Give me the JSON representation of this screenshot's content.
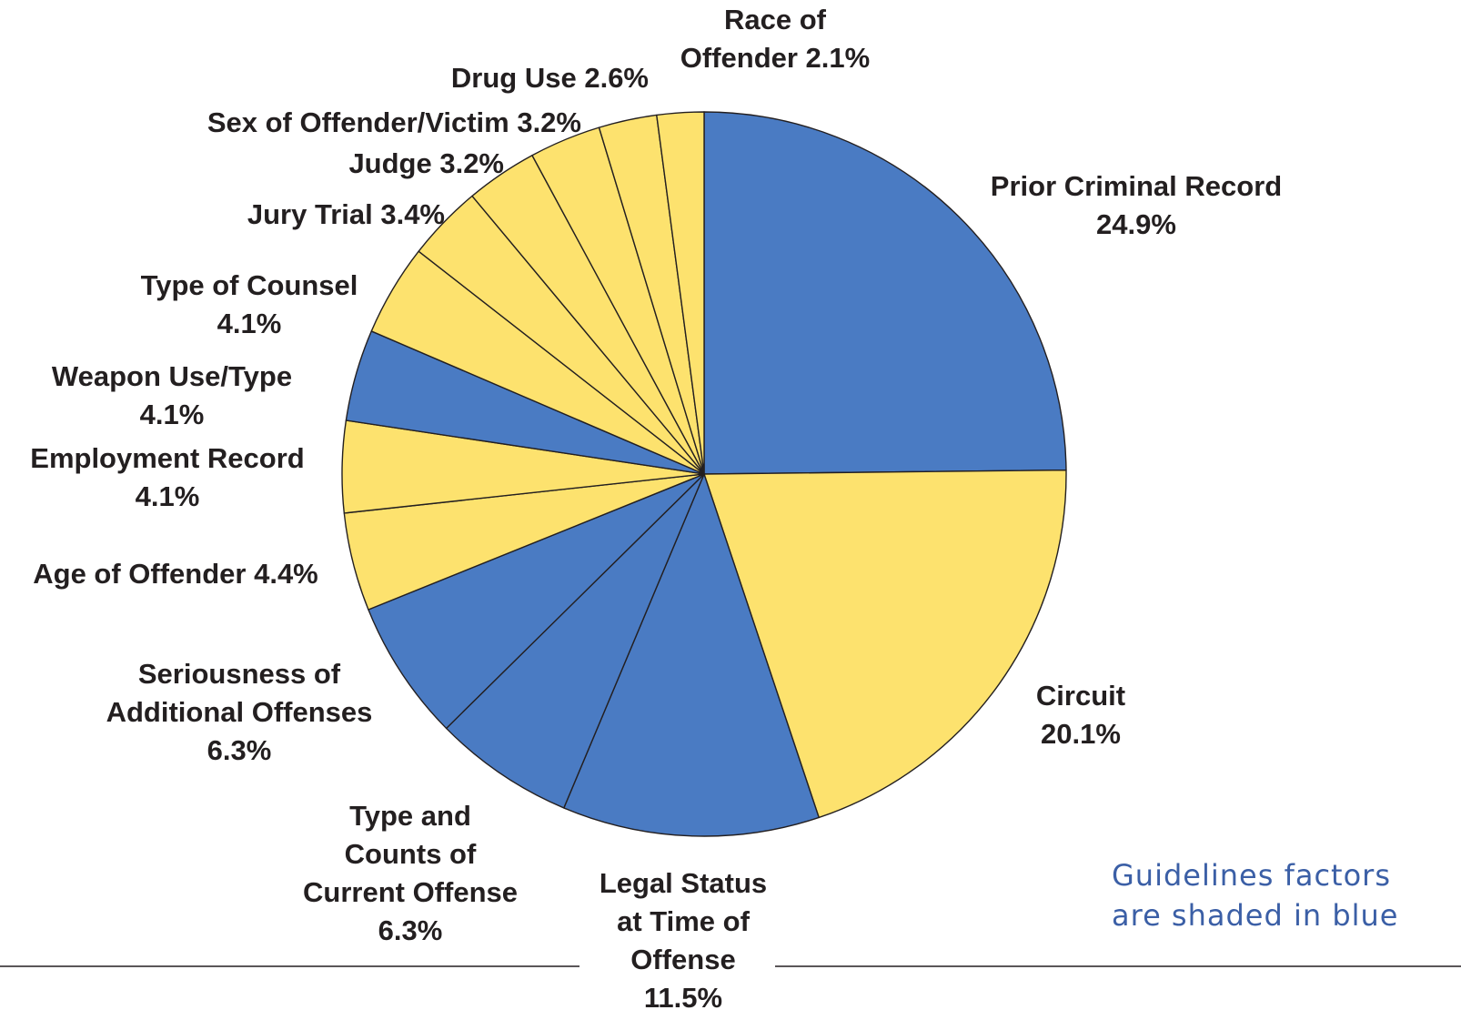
{
  "chart_data": {
    "type": "pie",
    "start_angle_deg": 0,
    "direction": "clockwise",
    "slices": [
      {
        "lines": [
          "Prior Criminal Record",
          "24.9%"
        ],
        "value": 24.9,
        "color": "#4a7bc3",
        "guidelines_factor": true
      },
      {
        "lines": [
          "Circuit",
          "20.1%"
        ],
        "value": 20.1,
        "color": "#fde26e",
        "guidelines_factor": false
      },
      {
        "lines": [
          "Legal Status",
          "at Time of",
          "Offense",
          "11.5%"
        ],
        "value": 11.5,
        "color": "#4a7bc3",
        "guidelines_factor": true
      },
      {
        "lines": [
          "Type and",
          "Counts of",
          "Current Offense",
          "6.3%"
        ],
        "value": 6.3,
        "color": "#4a7bc3",
        "guidelines_factor": true
      },
      {
        "lines": [
          "Seriousness of",
          "Additional Offenses",
          "6.3%"
        ],
        "value": 6.3,
        "color": "#4a7bc3",
        "guidelines_factor": true
      },
      {
        "lines": [
          "Age of Offender 4.4%"
        ],
        "value": 4.4,
        "color": "#fde26e",
        "guidelines_factor": false
      },
      {
        "lines": [
          "Employment Record",
          "4.1%"
        ],
        "value": 4.1,
        "color": "#fde26e",
        "guidelines_factor": false
      },
      {
        "lines": [
          "Weapon Use/Type",
          "4.1%"
        ],
        "value": 4.1,
        "color": "#4a7bc3",
        "guidelines_factor": true
      },
      {
        "lines": [
          "Type of Counsel",
          "4.1%"
        ],
        "value": 4.1,
        "color": "#fde26e",
        "guidelines_factor": false
      },
      {
        "lines": [
          "Jury Trial 3.4%"
        ],
        "value": 3.4,
        "color": "#fde26e",
        "guidelines_factor": false
      },
      {
        "lines": [
          "Judge 3.2%"
        ],
        "value": 3.2,
        "color": "#fde26e",
        "guidelines_factor": false
      },
      {
        "lines": [
          "Sex of Offender/Victim 3.2%"
        ],
        "value": 3.2,
        "color": "#fde26e",
        "guidelines_factor": false
      },
      {
        "lines": [
          "Drug Use 2.6%"
        ],
        "value": 2.6,
        "color": "#fde26e",
        "guidelines_factor": false
      },
      {
        "lines": [
          "Race of",
          "Offender 2.1%"
        ],
        "value": 2.1,
        "color": "#fde26e",
        "guidelines_factor": false
      }
    ]
  },
  "note": {
    "lines": [
      "Guidelines factors",
      "are shaded in blue"
    ],
    "color": "#3b5fa6"
  }
}
